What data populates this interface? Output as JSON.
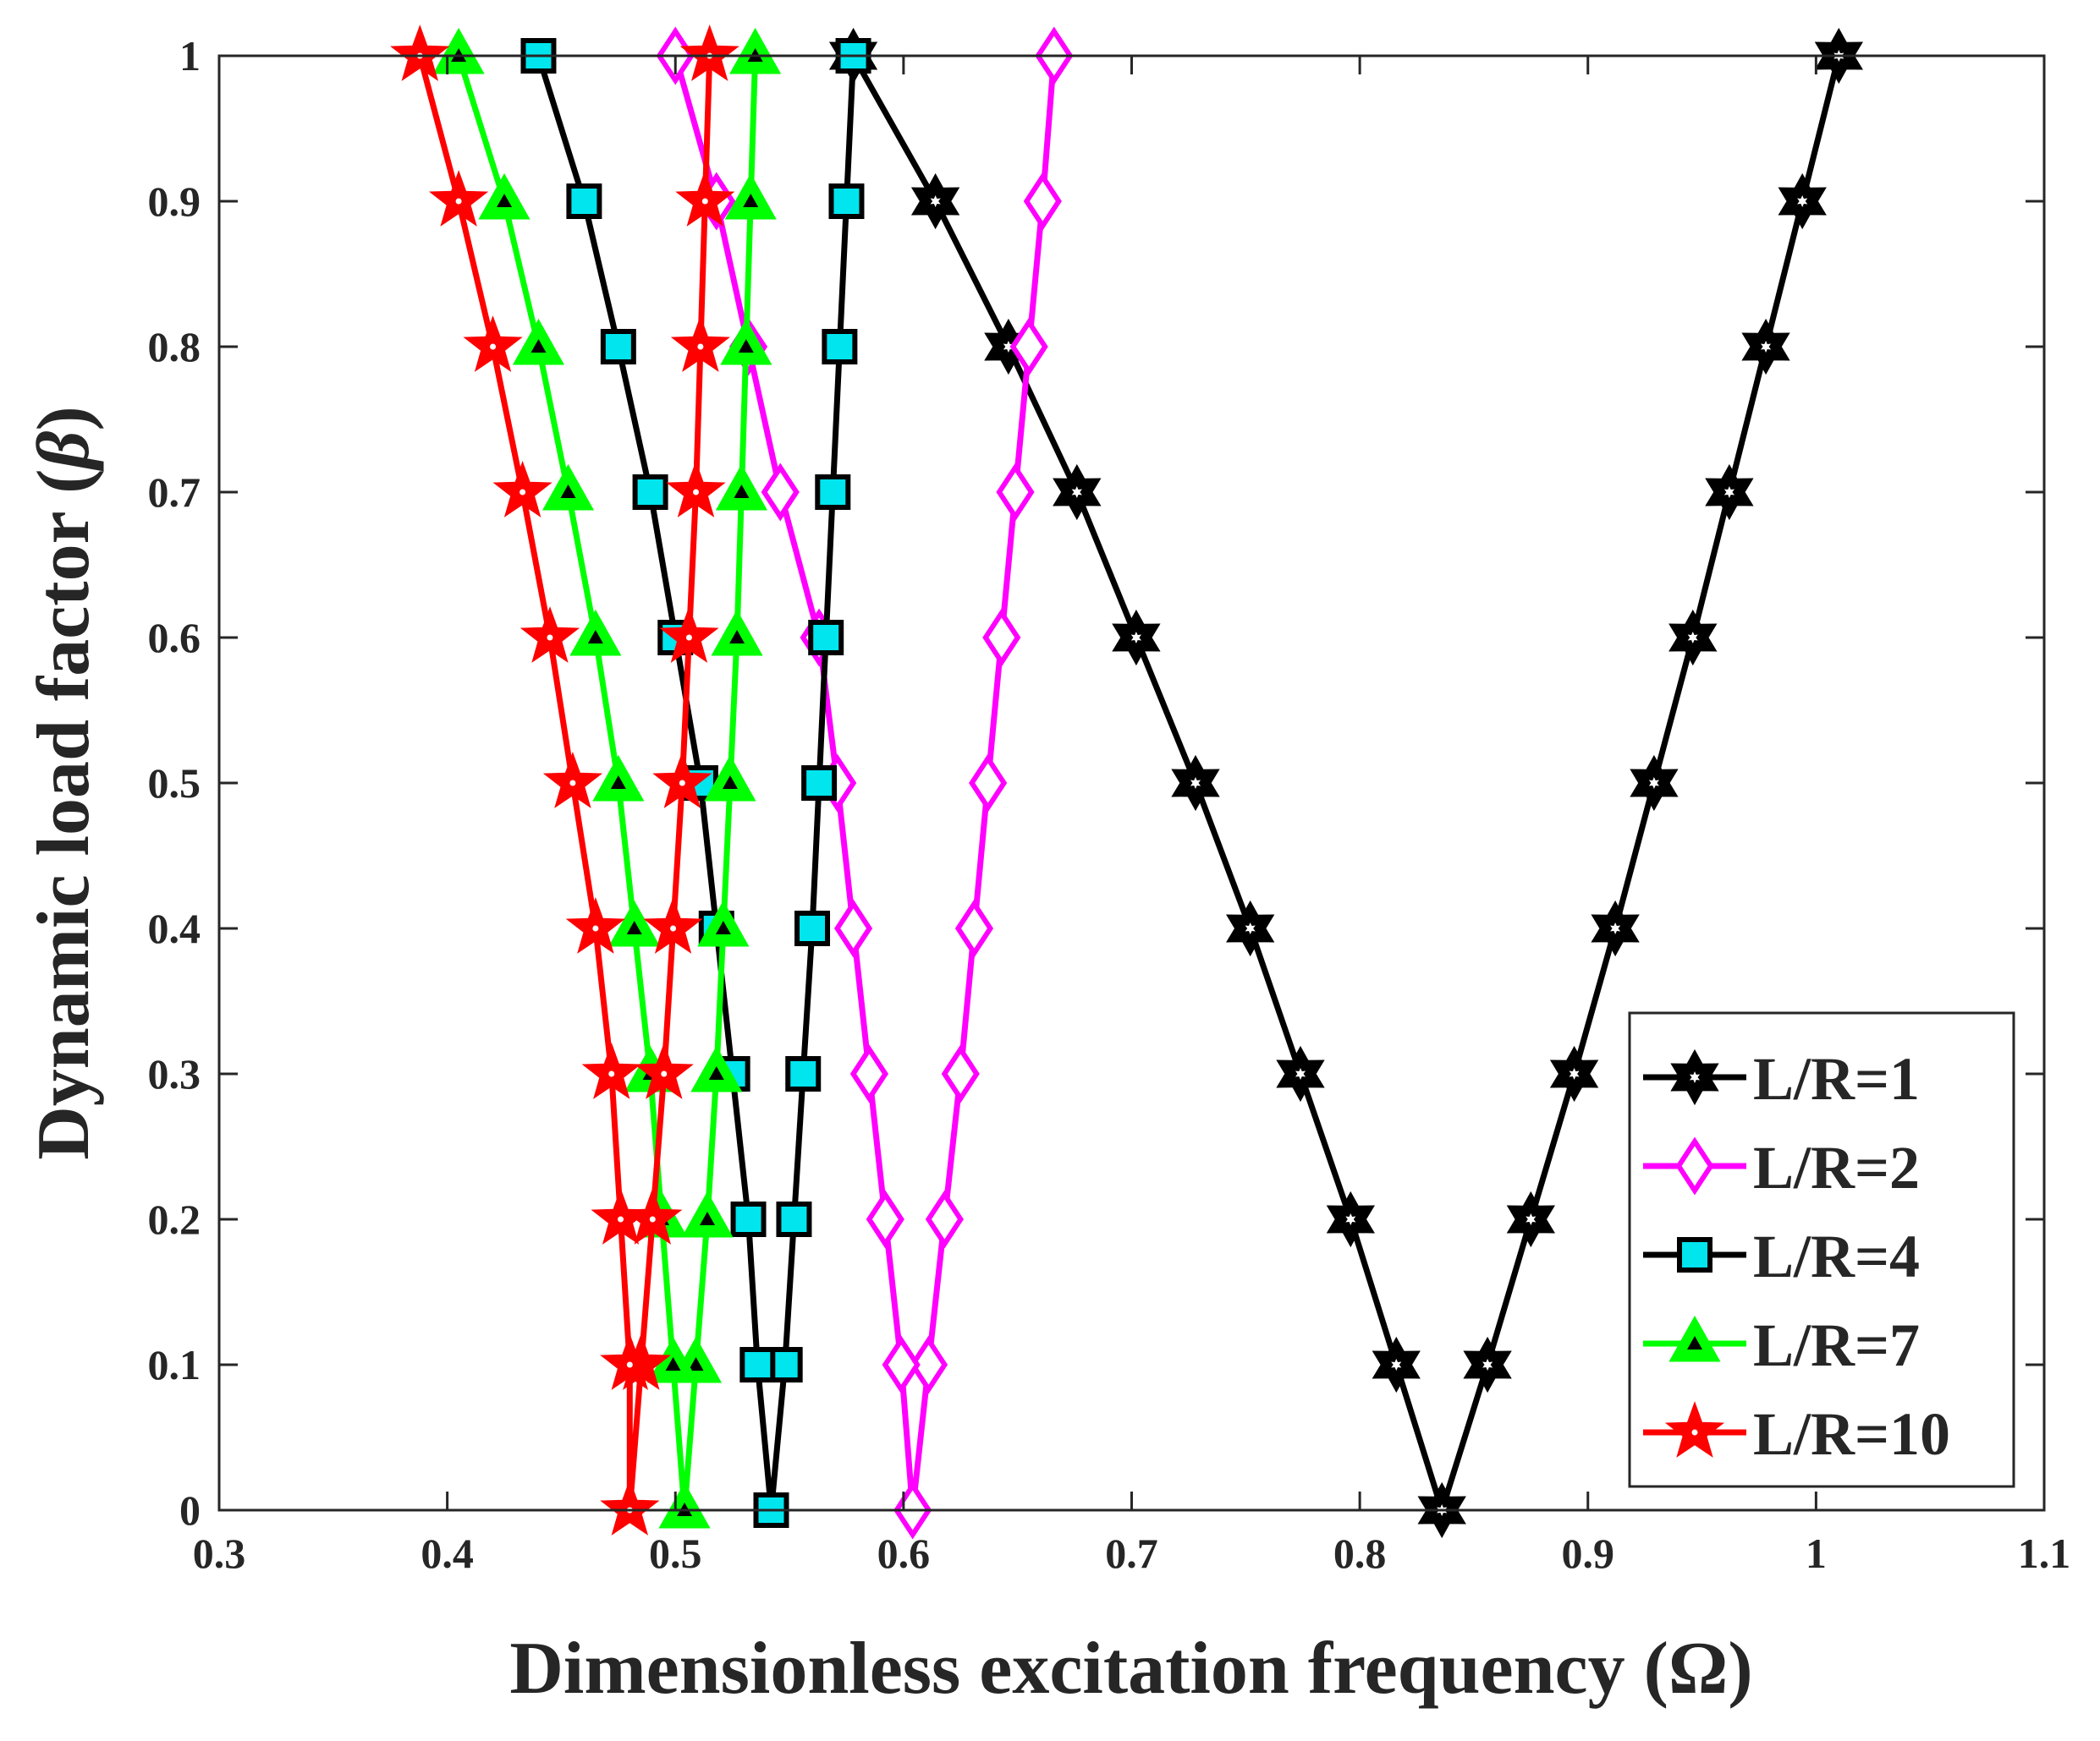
{
  "chart_data": {
    "type": "line",
    "title": "",
    "xlabel": "Dimensionless excitation frequency (Ω)",
    "ylabel_parts": [
      "Dynamic load factor (",
      "β",
      ")"
    ],
    "xlim": [
      0.3,
      1.1
    ],
    "ylim": [
      0,
      1
    ],
    "xticks": [
      0.3,
      0.4,
      0.5,
      0.6,
      0.7,
      0.8,
      0.9,
      1,
      1.1
    ],
    "xtick_labels": [
      "0.3",
      "0.4",
      "0.5",
      "0.6",
      "0.7",
      "0.8",
      "0.9",
      "1",
      "1.1"
    ],
    "yticks": [
      0,
      0.1,
      0.2,
      0.3,
      0.4,
      0.5,
      0.6,
      0.7,
      0.8,
      0.9,
      1
    ],
    "ytick_labels": [
      "0",
      "0.1",
      "0.2",
      "0.3",
      "0.4",
      "0.5",
      "0.6",
      "0.7",
      "0.8",
      "0.9",
      "1"
    ],
    "grid": false,
    "legend_position": "bottom-right",
    "series": [
      {
        "name": "L/R=1",
        "color": "#000000",
        "marker": "hexagram",
        "marker_fill": "#ffffff",
        "points": [
          [
            1.01,
            1.0
          ],
          [
            0.994,
            0.9
          ],
          [
            0.978,
            0.8
          ],
          [
            0.962,
            0.7
          ],
          [
            0.946,
            0.6
          ],
          [
            0.929,
            0.5
          ],
          [
            0.912,
            0.4
          ],
          [
            0.894,
            0.3
          ],
          [
            0.875,
            0.2
          ],
          [
            0.856,
            0.1
          ],
          [
            0.836,
            0.0
          ],
          [
            0.816,
            0.1
          ],
          [
            0.796,
            0.2
          ],
          [
            0.774,
            0.3
          ],
          [
            0.752,
            0.4
          ],
          [
            0.728,
            0.5
          ],
          [
            0.702,
            0.6
          ],
          [
            0.676,
            0.7
          ],
          [
            0.646,
            0.8
          ],
          [
            0.614,
            0.9
          ],
          [
            0.578,
            1.0
          ]
        ]
      },
      {
        "name": "L/R=2",
        "color": "#ff00ff",
        "marker": "diamond",
        "marker_fill": "#ffffff",
        "points": [
          [
            0.666,
            1.0
          ],
          [
            0.661,
            0.9
          ],
          [
            0.655,
            0.8
          ],
          [
            0.649,
            0.7
          ],
          [
            0.643,
            0.6
          ],
          [
            0.637,
            0.5
          ],
          [
            0.631,
            0.4
          ],
          [
            0.625,
            0.3
          ],
          [
            0.618,
            0.2
          ],
          [
            0.611,
            0.1
          ],
          [
            0.604,
            0.0
          ],
          [
            0.599,
            0.1
          ],
          [
            0.592,
            0.2
          ],
          [
            0.585,
            0.3
          ],
          [
            0.578,
            0.4
          ],
          [
            0.571,
            0.5
          ],
          [
            0.563,
            0.6
          ],
          [
            0.546,
            0.7
          ],
          [
            0.532,
            0.8
          ],
          [
            0.518,
            0.9
          ],
          [
            0.5,
            1.0
          ]
        ]
      },
      {
        "name": "L/R=4",
        "color": "#000000",
        "marker": "square",
        "marker_fill": "#00e5ee",
        "points": [
          [
            0.578,
            1.0
          ],
          [
            0.575,
            0.9
          ],
          [
            0.572,
            0.8
          ],
          [
            0.569,
            0.7
          ],
          [
            0.566,
            0.6
          ],
          [
            0.563,
            0.5
          ],
          [
            0.56,
            0.4
          ],
          [
            0.556,
            0.3
          ],
          [
            0.552,
            0.2
          ],
          [
            0.548,
            0.1
          ],
          [
            0.542,
            0.0
          ],
          [
            0.536,
            0.1
          ],
          [
            0.532,
            0.2
          ],
          [
            0.525,
            0.3
          ],
          [
            0.518,
            0.4
          ],
          [
            0.511,
            0.5
          ],
          [
            0.5,
            0.6
          ],
          [
            0.489,
            0.7
          ],
          [
            0.475,
            0.8
          ],
          [
            0.46,
            0.9
          ],
          [
            0.44,
            1.0
          ]
        ]
      },
      {
        "name": "L/R=7",
        "color": "#00ff00",
        "marker": "triangle",
        "marker_fill": "#000000",
        "points": [
          [
            0.535,
            1.0
          ],
          [
            0.533,
            0.9
          ],
          [
            0.531,
            0.8
          ],
          [
            0.529,
            0.7
          ],
          [
            0.527,
            0.6
          ],
          [
            0.524,
            0.5
          ],
          [
            0.521,
            0.4
          ],
          [
            0.518,
            0.3
          ],
          [
            0.514,
            0.2
          ],
          [
            0.509,
            0.1
          ],
          [
            0.504,
            0.0
          ],
          [
            0.499,
            0.1
          ],
          [
            0.494,
            0.2
          ],
          [
            0.489,
            0.3
          ],
          [
            0.482,
            0.4
          ],
          [
            0.475,
            0.5
          ],
          [
            0.465,
            0.6
          ],
          [
            0.453,
            0.7
          ],
          [
            0.44,
            0.8
          ],
          [
            0.425,
            0.9
          ],
          [
            0.405,
            1.0
          ]
        ]
      },
      {
        "name": "L/R=10",
        "color": "#ff0000",
        "marker": "pentagram",
        "marker_fill": "#ffffff",
        "points": [
          [
            0.515,
            1.0
          ],
          [
            0.513,
            0.9
          ],
          [
            0.511,
            0.8
          ],
          [
            0.509,
            0.7
          ],
          [
            0.506,
            0.6
          ],
          [
            0.503,
            0.5
          ],
          [
            0.499,
            0.4
          ],
          [
            0.495,
            0.3
          ],
          [
            0.49,
            0.2
          ],
          [
            0.485,
            0.1
          ],
          [
            0.48,
            0.0
          ],
          [
            0.48,
            0.1
          ],
          [
            0.476,
            0.2
          ],
          [
            0.472,
            0.3
          ],
          [
            0.465,
            0.4
          ],
          [
            0.455,
            0.5
          ],
          [
            0.445,
            0.6
          ],
          [
            0.433,
            0.7
          ],
          [
            0.42,
            0.8
          ],
          [
            0.405,
            0.9
          ],
          [
            0.388,
            1.0
          ]
        ]
      }
    ]
  }
}
